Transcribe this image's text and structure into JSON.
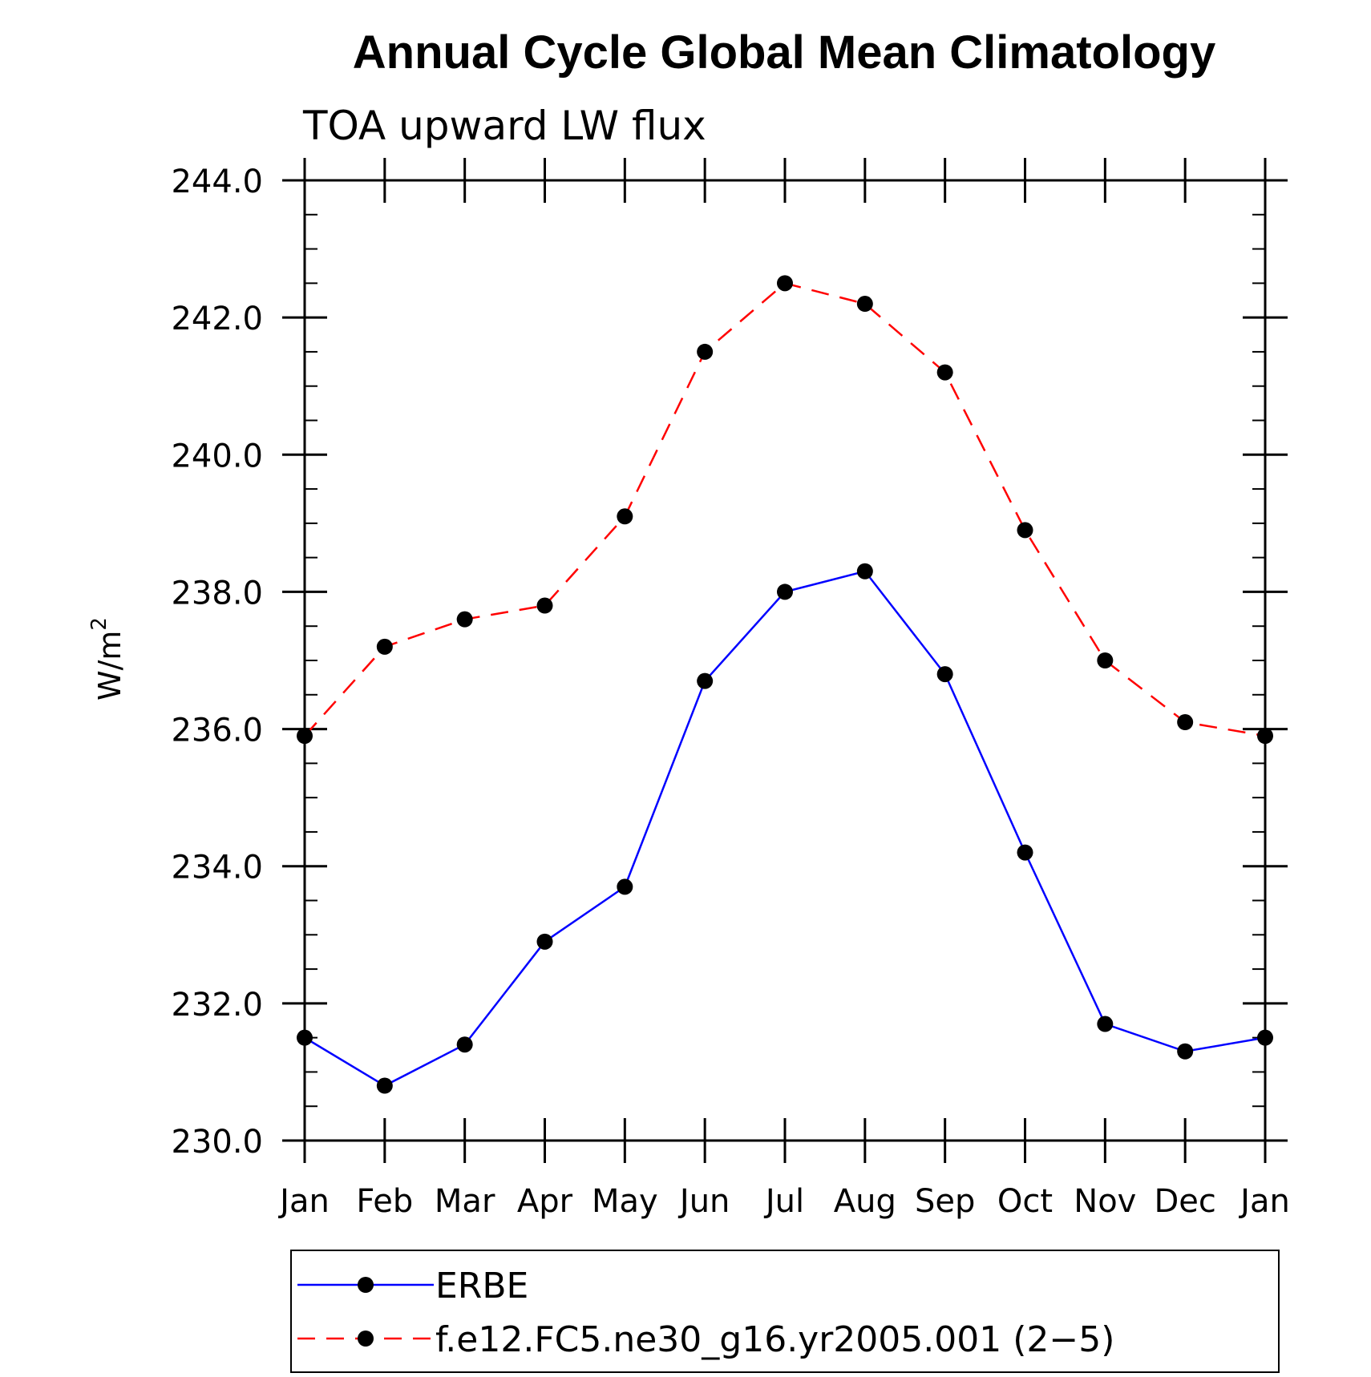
{
  "chart_data": {
    "type": "line",
    "title": "Annual Cycle Global Mean Climatology",
    "subtitle": "TOA upward LW flux",
    "ylabel": "W/m",
    "ylabel_sup": "2",
    "categories": [
      "Jan",
      "Feb",
      "Mar",
      "Apr",
      "May",
      "Jun",
      "Jul",
      "Aug",
      "Sep",
      "Oct",
      "Nov",
      "Dec",
      "Jan"
    ],
    "ylim": [
      230,
      244
    ],
    "yticks": [
      230,
      232,
      234,
      236,
      238,
      240,
      242,
      244
    ],
    "ytick_labels": [
      "230.0",
      "232.0",
      "234.0",
      "236.0",
      "238.0",
      "240.0",
      "242.0",
      "244.0"
    ],
    "y_minor_step": 0.5,
    "grid": false,
    "legend_position": "bottom",
    "series": [
      {
        "name": "ERBE",
        "color": "#0000ff",
        "line_style": "solid",
        "marker": "filled-circle",
        "values": [
          231.5,
          230.8,
          231.4,
          232.9,
          233.7,
          236.7,
          238.0,
          238.3,
          236.8,
          234.2,
          231.7,
          231.3,
          231.5
        ]
      },
      {
        "name": "f.e12.FC5.ne30_g16.yr2005.001 (2−5)",
        "color": "#ff0000",
        "line_style": "dashed",
        "marker": "filled-circle",
        "values": [
          235.9,
          237.2,
          237.6,
          237.8,
          239.1,
          241.5,
          242.5,
          242.2,
          241.2,
          238.9,
          237.0,
          236.1,
          235.9
        ]
      }
    ]
  }
}
